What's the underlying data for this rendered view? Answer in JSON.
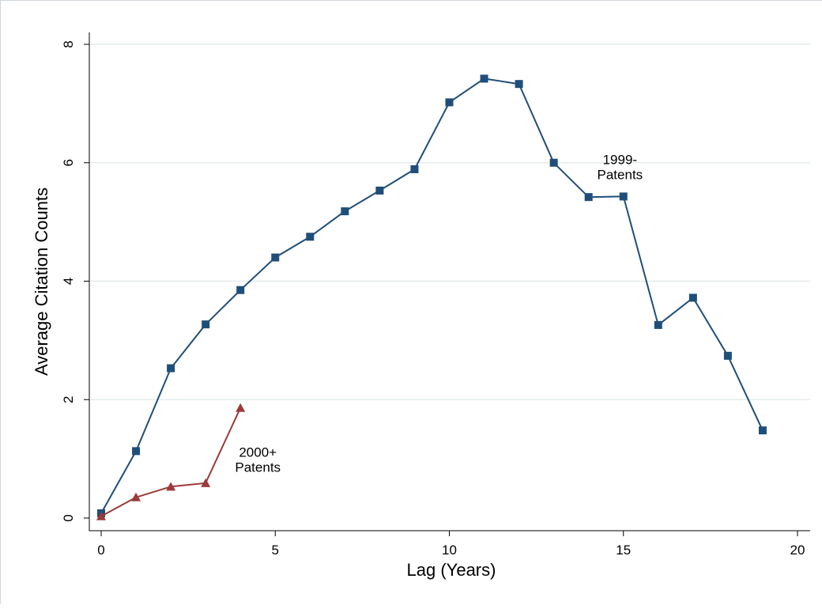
{
  "chart_data": {
    "type": "line",
    "title": "",
    "xlabel": "Lag (Years)",
    "ylabel": "Average Citation Counts",
    "xlim": [
      0,
      20
    ],
    "ylim": [
      0,
      8
    ],
    "x_ticks": [
      "0",
      "5",
      "10",
      "15",
      "20"
    ],
    "y_ticks": [
      "0",
      "2",
      "4",
      "6",
      "8"
    ],
    "grid": "horizontal",
    "series": [
      {
        "marker": "square",
        "color": "#1f4e79",
        "x": [
          0,
          1,
          2,
          3,
          4,
          5,
          6,
          7,
          8,
          9,
          10,
          11,
          12,
          13,
          14,
          15,
          16,
          17,
          18,
          19
        ],
        "values": [
          0.08,
          1.13,
          2.53,
          3.27,
          3.85,
          4.4,
          4.75,
          5.18,
          5.53,
          5.89,
          7.02,
          7.42,
          7.33,
          6.0,
          5.42,
          5.43,
          3.26,
          3.72,
          2.74,
          1.48
        ]
      },
      {
        "marker": "triangle",
        "color": "#9b3a3a",
        "x": [
          0,
          1,
          2,
          3,
          4
        ],
        "values": [
          0.03,
          0.35,
          0.53,
          0.59,
          1.86
        ]
      }
    ],
    "annotations": [
      {
        "lines": [
          "1999-",
          "Patents"
        ],
        "x": 14.9,
        "y": 5.93
      },
      {
        "lines": [
          "2000+",
          "Patents"
        ],
        "x": 4.5,
        "y": 0.99
      }
    ]
  }
}
